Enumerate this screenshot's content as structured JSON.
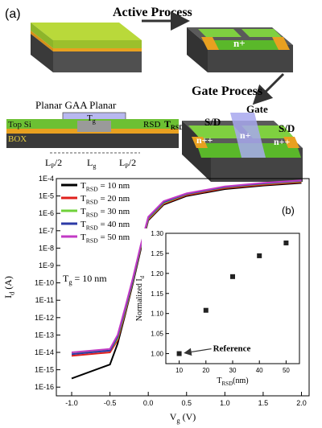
{
  "panel_a": {
    "label": "(a)",
    "active_process": "Active Process",
    "gate_process": "Gate Process",
    "n_plus": "n+",
    "cross_section": {
      "header": "Planar GAA Planar",
      "tg": "T",
      "tg_sub": "g",
      "top_si": "Top Si",
      "box": "BOX",
      "rsd": "RSD",
      "trsd": "T",
      "trsd_sub": "RSD",
      "lp_left": "L",
      "lp_left_sub": "P",
      "lp_left_suffix": "/2",
      "lg": "L",
      "lg_sub": "g",
      "lp_right": "L",
      "lp_right_sub": "P",
      "lp_right_suffix": "/2"
    },
    "device3d": {
      "gate": "Gate",
      "sd_left": "S/D",
      "sd_right": "S/D",
      "npp_left": "n++",
      "n_plus": "n+",
      "npp_right": "n++"
    }
  },
  "panel_b": {
    "label": "(b)",
    "tg_note": "T",
    "tg_note_sub": "g",
    "tg_note_value": " = 10 nm",
    "colors": {
      "10": "#000000",
      "20": "#e0201c",
      "30": "#6fd13a",
      "40": "#2c3aa6",
      "50": "#c23ac4"
    }
  },
  "chart_data": [
    {
      "type": "line",
      "xlabel": "V",
      "xlabel_sub": "g",
      "xlabel_suffix": " (V)",
      "ylabel": "I",
      "ylabel_sub": "d",
      "ylabel_suffix": " (A)",
      "xlim": [
        -1.2,
        2.1
      ],
      "ylim": [
        -16.5,
        -4
      ],
      "yscale": "log",
      "x_ticks": [
        "-1.0",
        "-0.5",
        "0.0",
        "0.5",
        "1.0",
        "1.5",
        "2.0"
      ],
      "y_ticks": [
        "1E-4",
        "1E-5",
        "1E-6",
        "1E-7",
        "1E-8",
        "1E-9",
        "1E-10",
        "1E-11",
        "1E-12",
        "1E-13",
        "1E-14",
        "1E-15",
        "1E-16"
      ],
      "legend_position": "top-left",
      "series": [
        {
          "name": "T",
          "name_sub": "RSD",
          "name_suffix": " = 10 nm",
          "x": [
            -1.0,
            -0.5,
            -0.4,
            -0.3,
            -0.2,
            -0.1,
            0.0,
            0.2,
            0.5,
            1.0,
            1.5,
            2.0
          ],
          "y": [
            -15.5,
            -14.7,
            -13.5,
            -11.8,
            -10.0,
            -8.1,
            -6.4,
            -5.5,
            -5.0,
            -4.6,
            -4.4,
            -4.25
          ]
        },
        {
          "name": "T",
          "name_sub": "RSD",
          "name_suffix": " = 20 nm",
          "x": [
            -1.0,
            -0.5,
            -0.4,
            -0.3,
            -0.2,
            -0.1,
            0.0,
            0.2,
            0.5,
            1.0,
            1.5,
            2.0
          ],
          "y": [
            -14.2,
            -14.0,
            -13.3,
            -11.7,
            -9.9,
            -8.0,
            -6.35,
            -5.45,
            -4.95,
            -4.55,
            -4.35,
            -4.2
          ]
        },
        {
          "name": "T",
          "name_sub": "RSD",
          "name_suffix": " = 30 nm",
          "x": [
            -1.0,
            -0.5,
            -0.4,
            -0.3,
            -0.2,
            -0.1,
            0.0,
            0.2,
            0.5,
            1.0,
            1.5,
            2.0
          ],
          "y": [
            -14.0,
            -13.9,
            -13.2,
            -11.6,
            -9.85,
            -7.95,
            -6.3,
            -5.4,
            -4.9,
            -4.5,
            -4.3,
            -4.15
          ]
        },
        {
          "name": "T",
          "name_sub": "RSD",
          "name_suffix": " = 40 nm",
          "x": [
            -1.0,
            -0.5,
            -0.4,
            -0.3,
            -0.2,
            -0.1,
            0.0,
            0.2,
            0.5,
            1.0,
            1.5,
            2.0
          ],
          "y": [
            -14.1,
            -13.9,
            -13.1,
            -11.5,
            -9.8,
            -7.9,
            -6.25,
            -5.35,
            -4.88,
            -4.48,
            -4.28,
            -4.12
          ]
        },
        {
          "name": "T",
          "name_sub": "RSD",
          "name_suffix": " = 50 nm",
          "x": [
            -1.0,
            -0.5,
            -0.4,
            -0.3,
            -0.2,
            -0.1,
            0.0,
            0.2,
            0.5,
            1.0,
            1.5,
            2.0
          ],
          "y": [
            -14.0,
            -13.8,
            -13.0,
            -11.4,
            -9.7,
            -7.85,
            -6.2,
            -5.3,
            -4.85,
            -4.45,
            -4.25,
            -4.1
          ]
        }
      ]
    },
    {
      "type": "scatter",
      "xlabel": "T",
      "xlabel_sub": "RSD",
      "xlabel_suffix": "(nm)",
      "ylabel": "Normalized I",
      "ylabel_sub": "d",
      "xlim": [
        5,
        55
      ],
      "ylim": [
        0.975,
        1.3
      ],
      "x_ticks": [
        "10",
        "20",
        "30",
        "40",
        "50"
      ],
      "y_ticks": [
        "1.00",
        "1.05",
        "1.10",
        "1.15",
        "1.20",
        "1.25",
        "1.30"
      ],
      "x": [
        10,
        20,
        30,
        40,
        50
      ],
      "y": [
        1.0,
        1.108,
        1.192,
        1.244,
        1.276
      ],
      "annotation": "Reference"
    }
  ]
}
